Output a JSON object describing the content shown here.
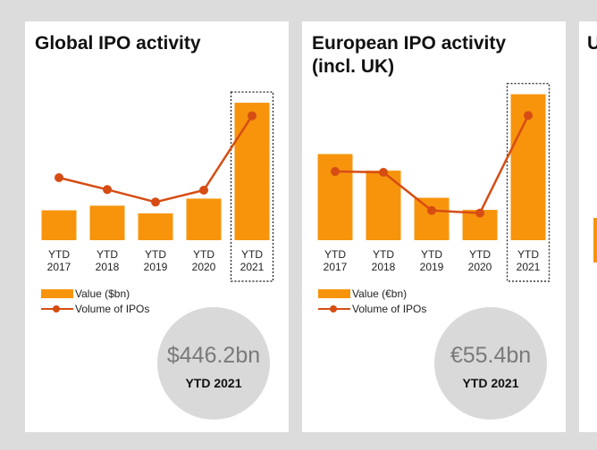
{
  "colors": {
    "bar": "#f7940c",
    "line": "#d64d14",
    "highlight_box": "#333333"
  },
  "panels": [
    {
      "title": "Global IPO activity",
      "legend": {
        "bar_label": "Value ($bn)",
        "line_label": "Volume of IPOs"
      },
      "highlight_value": "$446.2bn",
      "highlight_period": "YTD 2021"
    },
    {
      "title_line1": "European IPO activity",
      "title_line2": "(incl. UK)",
      "legend": {
        "bar_label": "Value (€bn)",
        "line_label": "Volume of IPOs"
      },
      "highlight_value": "€55.4bn",
      "highlight_period": "YTD 2021"
    },
    {
      "title": "U"
    }
  ],
  "chart_data": [
    {
      "type": "bar",
      "title": "Global IPO activity",
      "categories": [
        [
          "YTD",
          "2017"
        ],
        [
          "YTD",
          "2018"
        ],
        [
          "YTD",
          "2019"
        ],
        [
          "YTD",
          "2020"
        ],
        [
          "YTD",
          "2021"
        ]
      ],
      "series": [
        {
          "name": "Value ($bn)",
          "kind": "bar",
          "values": [
            97,
            112,
            87,
            135,
            446.2
          ]
        },
        {
          "name": "Volume of IPOs",
          "kind": "line",
          "values": [
            100,
            81,
            61,
            80,
            199
          ]
        }
      ],
      "highlight_category": 4
    },
    {
      "type": "bar",
      "title": "European IPO activity (incl. UK)",
      "categories": [
        [
          "YTD",
          "2017"
        ],
        [
          "YTD",
          "2018"
        ],
        [
          "YTD",
          "2019"
        ],
        [
          "YTD",
          "2020"
        ],
        [
          "YTD",
          "2021"
        ]
      ],
      "series": [
        {
          "name": "Value (€bn)",
          "kind": "bar",
          "values": [
            32.7,
            26.4,
            16.1,
            11.5,
            55.4
          ]
        },
        {
          "name": "Volume of IPOs",
          "kind": "line",
          "values": [
            81,
            80,
            35,
            32,
            147
          ]
        }
      ],
      "highlight_category": 4
    }
  ]
}
